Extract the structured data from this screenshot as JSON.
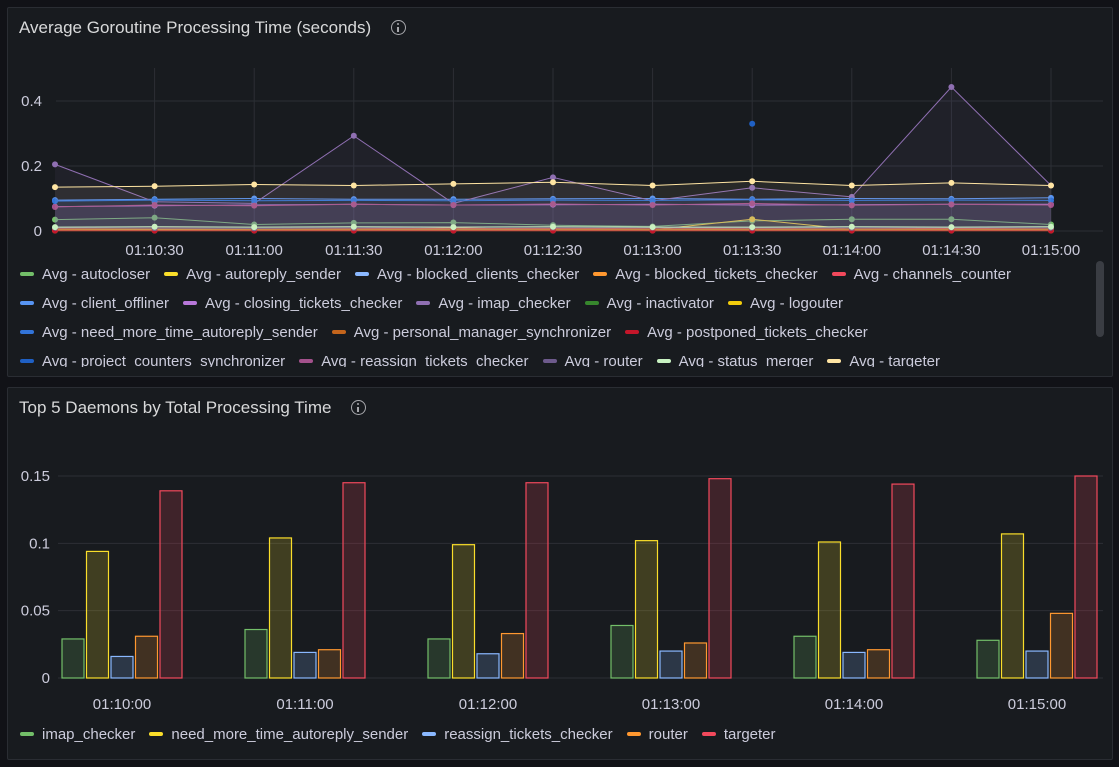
{
  "panels": [
    {
      "title": "Average Goroutine Processing Time (seconds)",
      "chart_data": {
        "type": "line",
        "x": [
          "01:10:00",
          "01:10:30",
          "01:11:00",
          "01:11:30",
          "01:12:00",
          "01:12:30",
          "01:13:00",
          "01:13:30",
          "01:14:00",
          "01:14:30",
          "01:15:00"
        ],
        "xticks": [
          "01:10:30",
          "01:11:00",
          "01:11:30",
          "01:12:00",
          "01:12:30",
          "01:13:00",
          "01:13:30",
          "01:14:00",
          "01:14:30",
          "01:15:00"
        ],
        "yticks": [
          0,
          0.2,
          0.4
        ],
        "ylim": [
          0,
          0.46
        ],
        "grid": true,
        "legend_placement": "bottom",
        "series": [
          {
            "name": "Avg - autocloser",
            "color": "#73bf69",
            "values": [
              0.035,
              0.041,
              0.02,
              0.025,
              0.026,
              0.018,
              0.014,
              0.031,
              0.036,
              0.036,
              0.02
            ]
          },
          {
            "name": "Avg - autoreply_sender",
            "color": "#fade2a",
            "values": [
              0.005,
              0.006,
              0.004,
              0.005,
              0.004,
              0.005,
              0.004,
              0.036,
              0.005,
              0.006,
              0.004
            ]
          },
          {
            "name": "Avg - blocked_clients_checker",
            "color": "#8ab8ff",
            "values": [
              0.002,
              0.003,
              0.002,
              0.002,
              0.002,
              0.002,
              0.002,
              0.002,
              0.002,
              0.002,
              0.002
            ]
          },
          {
            "name": "Avg - blocked_tickets_checker",
            "color": "#ff9830",
            "values": [
              0.003,
              0.004,
              0.003,
              0.003,
              0.01,
              0.003,
              0.003,
              0.003,
              0.003,
              0.003,
              0.003
            ]
          },
          {
            "name": "Avg - channels_counter",
            "color": "#f2495c",
            "values": [
              0.008,
              0.009,
              0.007,
              0.008,
              0.007,
              0.008,
              0.007,
              0.008,
              0.007,
              0.008,
              0.007
            ]
          },
          {
            "name": "Avg - client_offliner",
            "color": "#5794f2",
            "values": [
              0.095,
              0.098,
              0.1,
              0.098,
              0.098,
              0.099,
              0.1,
              0.098,
              0.1,
              0.099,
              0.102
            ]
          },
          {
            "name": "Avg - closing_tickets_checker",
            "color": "#b877d9",
            "values": [
              0.075,
              0.078,
              0.08,
              0.082,
              0.08,
              0.081,
              0.082,
              0.08,
              0.081,
              0.082,
              0.082
            ]
          },
          {
            "name": "Avg - imap_checker",
            "color": "#8f6fb2",
            "values": [
              0.205,
              0.09,
              0.085,
              0.293,
              0.085,
              0.165,
              0.093,
              0.133,
              0.105,
              0.443,
              0.14
            ]
          },
          {
            "name": "Avg - inactivator",
            "color": "#37872d",
            "values": [
              0.001,
              0.001,
              0.001,
              0.001,
              0.001,
              0.001,
              0.001,
              0.001,
              0.001,
              0.001,
              0.001
            ]
          },
          {
            "name": "Avg - logouter",
            "color": "#f2cc0c",
            "values": [
              0.002,
              0.002,
              0.002,
              0.002,
              0.002,
              0.002,
              0.002,
              0.002,
              0.002,
              0.002,
              0.002
            ]
          },
          {
            "name": "Avg - need_more_time_autoreply_sender",
            "color": "#3274d9",
            "values": [
              0.092,
              0.095,
              0.093,
              0.094,
              0.093,
              0.095,
              0.094,
              0.096,
              0.094,
              0.095,
              0.094
            ]
          },
          {
            "name": "Avg - personal_manager_synchronizer",
            "color": "#c4651c",
            "values": [
              0.006,
              0.007,
              0.006,
              0.006,
              0.006,
              0.006,
              0.006,
              0.006,
              0.006,
              0.006,
              0.006
            ]
          },
          {
            "name": "Avg - postponed_tickets_checker",
            "color": "#c4162a",
            "values": [
              0.001,
              0.001,
              0.001,
              0.001,
              0.001,
              0.001,
              0.001,
              0.001,
              0.001,
              0.001,
              0.001
            ]
          },
          {
            "name": "Avg - project_counters_synchronizer",
            "color": "#1f60c4",
            "values": [
              null,
              null,
              null,
              null,
              null,
              null,
              null,
              0.33,
              null,
              null,
              null
            ]
          },
          {
            "name": "Avg - reassign_tickets_checker",
            "color": "#a3518c",
            "values": [
              0.074,
              0.08,
              0.078,
              0.082,
              0.08,
              0.083,
              0.08,
              0.085,
              0.079,
              0.082,
              0.08
            ]
          },
          {
            "name": "Avg - router",
            "color": "#6d5a8c",
            "values": [
              0.01,
              0.009,
              0.008,
              0.01,
              0.012,
              0.012,
              0.011,
              0.01,
              0.01,
              0.011,
              0.01
            ]
          },
          {
            "name": "Avg - status_merger",
            "color": "#c8f2c2",
            "values": [
              0.012,
              0.013,
              0.012,
              0.013,
              0.012,
              0.013,
              0.012,
              0.012,
              0.013,
              0.012,
              0.013
            ]
          },
          {
            "name": "Avg - targeter",
            "color": "#ffe5a3",
            "values": [
              0.135,
              0.138,
              0.143,
              0.14,
              0.145,
              0.15,
              0.14,
              0.153,
              0.14,
              0.148,
              0.14
            ]
          }
        ]
      }
    },
    {
      "title": "Top 5 Daemons by Total Processing Time",
      "chart_data": {
        "type": "bar",
        "categories": [
          "01:10:00",
          "01:11:00",
          "01:12:00",
          "01:13:00",
          "01:14:00",
          "01:15:00"
        ],
        "yticks": [
          "0",
          "0.05",
          "0.1",
          "0.15"
        ],
        "ylim": [
          0,
          0.165
        ],
        "grid": true,
        "legend_placement": "bottom",
        "series": [
          {
            "name": "imap_checker",
            "color": "#73bf69",
            "values": [
              0.029,
              0.036,
              0.029,
              0.039,
              0.031,
              0.028
            ]
          },
          {
            "name": "need_more_time_autoreply_sender",
            "color": "#fade2a",
            "values": [
              0.094,
              0.104,
              0.099,
              0.102,
              0.101,
              0.107
            ]
          },
          {
            "name": "reassign_tickets_checker",
            "color": "#8ab8ff",
            "values": [
              0.016,
              0.019,
              0.018,
              0.02,
              0.019,
              0.02
            ]
          },
          {
            "name": "router",
            "color": "#ff9830",
            "values": [
              0.031,
              0.021,
              0.033,
              0.026,
              0.021,
              0.048
            ]
          },
          {
            "name": "targeter",
            "color": "#f2495c",
            "values": [
              0.139,
              0.145,
              0.145,
              0.148,
              0.144,
              0.15
            ]
          }
        ]
      }
    }
  ]
}
